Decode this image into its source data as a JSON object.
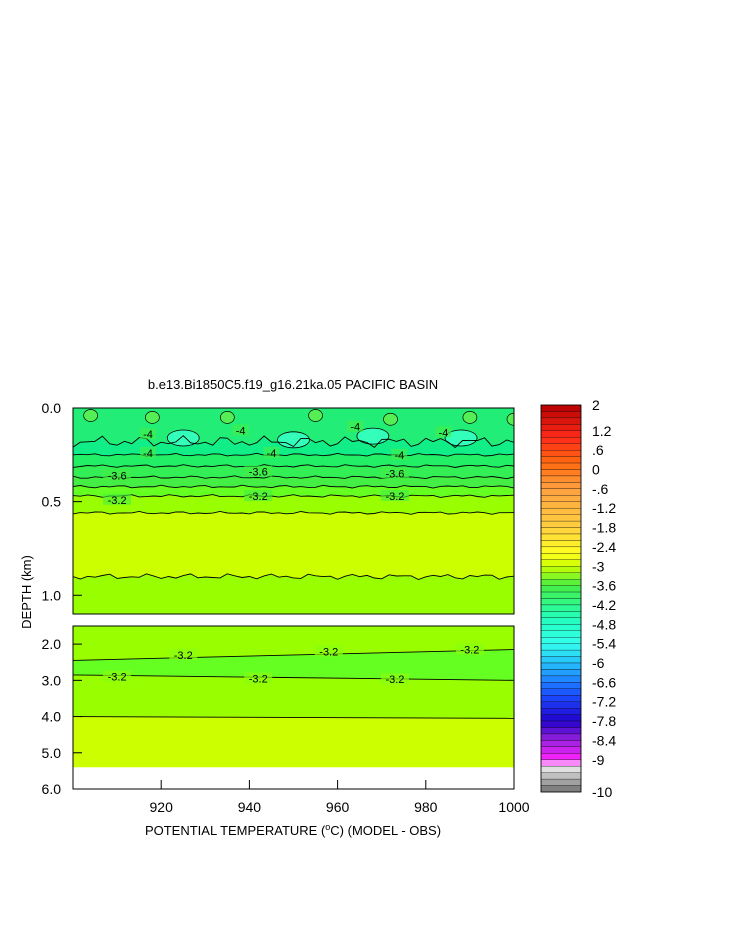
{
  "chart_data": {
    "type": "heatmap",
    "title": "b.e13.Bi1850C5.f19_g16.21ka.05 PACIFIC BASIN",
    "xlabel_prefix": "POTENTIAL TEMPERATURE (",
    "xlabel_degree": "o",
    "xlabel_suffix": "C) (MODEL - OBS)",
    "ylabel": "DEPTH (km)",
    "x_range": [
      900,
      1000
    ],
    "x_ticks": [
      920,
      940,
      960,
      980,
      1000
    ],
    "upper_panel": {
      "depth_range": [
        0.0,
        1.1
      ],
      "y_ticks": [
        "0.0",
        "0.5",
        "1.0"
      ],
      "y_tick_values": [
        0.0,
        0.5,
        1.0
      ],
      "contour_levels": [
        {
          "value": -4,
          "depth": 0.25
        },
        {
          "value": -3.8,
          "depth": 0.31
        },
        {
          "value": -3.6,
          "depth": 0.37
        },
        {
          "value": -3.4,
          "depth": 0.42
        },
        {
          "value": -3.2,
          "depth": 0.47
        },
        {
          "value": -3.0,
          "depth": 0.56
        },
        {
          "value": -3.0,
          "depth": 0.9
        }
      ],
      "contour_labels": [
        {
          "text": "-4",
          "x": 917,
          "depth": 0.14
        },
        {
          "text": "-4",
          "x": 938,
          "depth": 0.12
        },
        {
          "text": "-4",
          "x": 964,
          "depth": 0.1
        },
        {
          "text": "-4",
          "x": 984,
          "depth": 0.13
        },
        {
          "text": "-4",
          "x": 917,
          "depth": 0.24
        },
        {
          "text": "-4",
          "x": 945,
          "depth": 0.24
        },
        {
          "text": "-4",
          "x": 974,
          "depth": 0.25
        },
        {
          "text": "-3.6",
          "x": 910,
          "depth": 0.36
        },
        {
          "text": "-3.6",
          "x": 942,
          "depth": 0.34
        },
        {
          "text": "-3.6",
          "x": 973,
          "depth": 0.35
        },
        {
          "text": "-3.2",
          "x": 910,
          "depth": 0.49
        },
        {
          "text": "-3.2",
          "x": 942,
          "depth": 0.47
        },
        {
          "text": "-3.2",
          "x": 973,
          "depth": 0.47
        }
      ]
    },
    "lower_panel": {
      "depth_range": [
        1.5,
        6.0
      ],
      "y_ticks": [
        "2.0",
        "3.0",
        "4.0",
        "5.0",
        "6.0"
      ],
      "y_tick_values": [
        2.0,
        3.0,
        4.0,
        5.0,
        6.0
      ],
      "data_bottom_depth": 5.4,
      "contour_lines": [
        {
          "value": -3.2,
          "depth_left": 2.45,
          "depth_right": 2.15
        },
        {
          "value": -3.2,
          "depth_left": 2.85,
          "depth_right": 3.0
        },
        {
          "value": -3.0,
          "depth_left": 4.0,
          "depth_right": 4.05
        }
      ],
      "contour_labels": [
        {
          "text": "-3.2",
          "x": 925,
          "depth": 2.3
        },
        {
          "text": "-3.2",
          "x": 958,
          "depth": 2.2
        },
        {
          "text": "-3.2",
          "x": 990,
          "depth": 2.15
        },
        {
          "text": "-3.2",
          "x": 910,
          "depth": 2.9
        },
        {
          "text": "-3.2",
          "x": 942,
          "depth": 2.95
        },
        {
          "text": "-3.2",
          "x": 973,
          "depth": 2.97
        }
      ]
    },
    "colorbar": {
      "max": 2,
      "min": -10,
      "step": 0.2,
      "labels": [
        "2",
        "1.2",
        ".6",
        "0",
        "-.6",
        "-1.2",
        "-1.8",
        "-2.4",
        "-3",
        "-3.6",
        "-4.2",
        "-4.8",
        "-5.4",
        "-6",
        "-6.6",
        "-7.2",
        "-7.8",
        "-8.4",
        "-9",
        "-10"
      ],
      "label_values": [
        2,
        1.2,
        0.6,
        0,
        -0.6,
        -1.2,
        -1.8,
        -2.4,
        -3,
        -3.6,
        -4.2,
        -4.8,
        -5.4,
        -6,
        -6.6,
        -7.2,
        -7.8,
        -8.4,
        -9,
        -10
      ]
    }
  }
}
